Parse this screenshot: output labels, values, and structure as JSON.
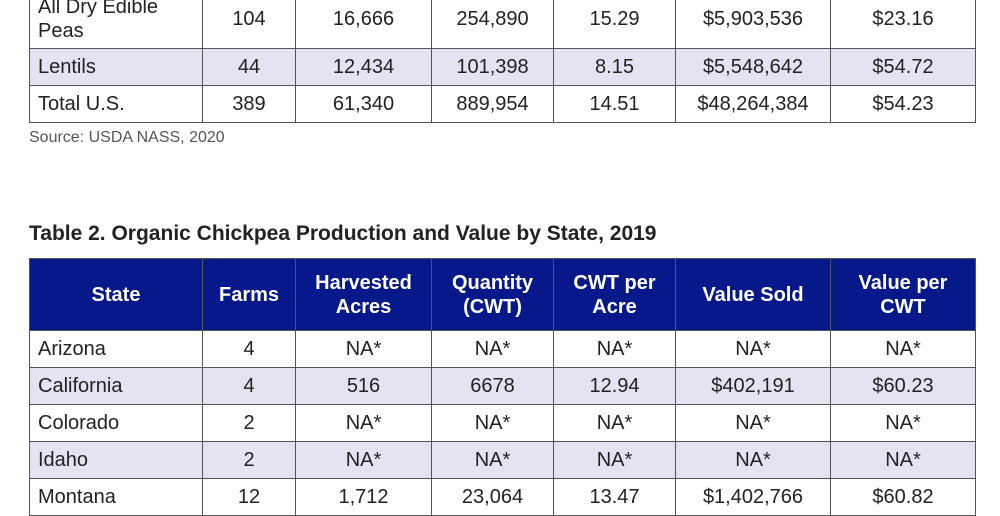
{
  "table1": {
    "rows": [
      [
        "All Dry Edible Peas",
        "104",
        "16,666",
        "254,890",
        "15.29",
        "$5,903,536",
        "$23.16"
      ],
      [
        "Lentils",
        "44",
        "12,434",
        "101,398",
        "8.15",
        "$5,548,642",
        "$54.72"
      ],
      [
        "Total U.S.",
        "389",
        "61,340",
        "889,954",
        "14.51",
        "$48,264,384",
        "$54.23"
      ]
    ],
    "source": "Source: USDA NASS, 2020"
  },
  "table2": {
    "title": "Table 2. Organic Chickpea Production and Value by State, 2019",
    "header_color": "#07188a",
    "headers": [
      "State",
      "Farms",
      "Harvested Acres",
      "Quantity (CWT)",
      "CWT per Acre",
      "Value Sold",
      "Value per CWT"
    ],
    "rows": [
      [
        "Arizona",
        "4",
        "NA*",
        "NA*",
        "NA*",
        "NA*",
        "NA*"
      ],
      [
        "California",
        "4",
        "516",
        "6678",
        "12.94",
        "$402,191",
        "$60.23"
      ],
      [
        "Colorado",
        "2",
        "NA*",
        "NA*",
        "NA*",
        "NA*",
        "NA*"
      ],
      [
        "Idaho",
        "2",
        "NA*",
        "NA*",
        "NA*",
        "NA*",
        "NA*"
      ],
      [
        "Montana",
        "12",
        "1,712",
        "23,064",
        "13.47",
        "$1,402,766",
        "$60.82"
      ]
    ]
  }
}
